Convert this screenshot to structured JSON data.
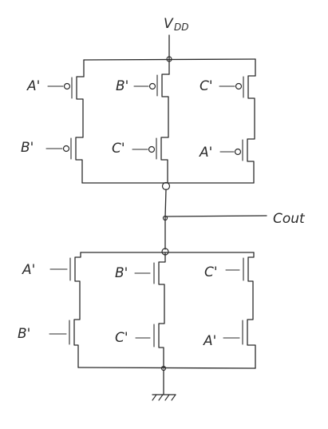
{
  "supply": {
    "label_main": "V",
    "label_sub": "DD"
  },
  "output": {
    "label": "Cout"
  },
  "pull_up": {
    "rows": [
      [
        "A'",
        "B'",
        "C'"
      ],
      [
        "B'",
        "C'",
        "A'"
      ]
    ]
  },
  "pull_down": {
    "rows": [
      [
        "A'",
        "B'",
        "C'"
      ],
      [
        "B'",
        "C'",
        "A'"
      ]
    ]
  }
}
